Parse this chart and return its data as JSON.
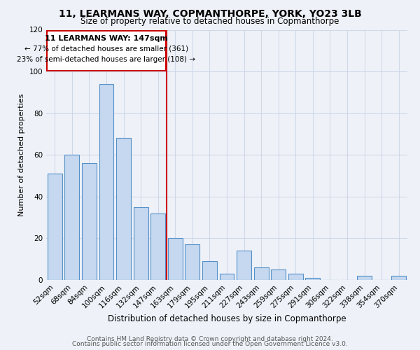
{
  "title": "11, LEARMANS WAY, COPMANTHORPE, YORK, YO23 3LB",
  "subtitle": "Size of property relative to detached houses in Copmanthorpe",
  "xlabel": "Distribution of detached houses by size in Copmanthorpe",
  "ylabel": "Number of detached properties",
  "bar_labels": [
    "52sqm",
    "68sqm",
    "84sqm",
    "100sqm",
    "116sqm",
    "132sqm",
    "147sqm",
    "163sqm",
    "179sqm",
    "195sqm",
    "211sqm",
    "227sqm",
    "243sqm",
    "259sqm",
    "275sqm",
    "291sqm",
    "306sqm",
    "322sqm",
    "338sqm",
    "354sqm",
    "370sqm"
  ],
  "bar_values": [
    51,
    60,
    56,
    94,
    68,
    35,
    32,
    20,
    17,
    9,
    3,
    14,
    6,
    5,
    3,
    1,
    0,
    0,
    2,
    0,
    2
  ],
  "bar_color": "#c5d8f0",
  "bar_edge_color": "#5590c8",
  "highlight_bar_index": 6,
  "highlight_line_color": "#cc0000",
  "highlight_box_color": "#cc0000",
  "ylim": [
    0,
    120
  ],
  "yticks": [
    0,
    20,
    40,
    60,
    80,
    100,
    120
  ],
  "annotation_title": "11 LEARMANS WAY: 147sqm",
  "annotation_line1": "← 77% of detached houses are smaller (361)",
  "annotation_line2": "23% of semi-detached houses are larger (108) →",
  "footer_line1": "Contains HM Land Registry data © Crown copyright and database right 2024.",
  "footer_line2": "Contains public sector information licensed under the Open Government Licence v3.0.",
  "background_color": "#eef2f8",
  "plot_background_color": "#eef2f8",
  "grid_color": "#d0d8e8",
  "title_fontsize": 10,
  "subtitle_fontsize": 8.5,
  "xlabel_fontsize": 8.5,
  "ylabel_fontsize": 8,
  "annotation_fontsize": 8,
  "tick_fontsize": 7.5,
  "footer_fontsize": 6.5
}
